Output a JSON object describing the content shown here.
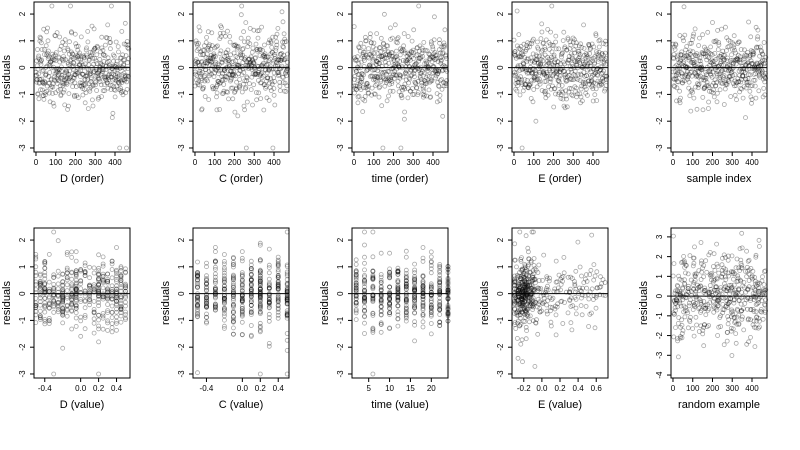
{
  "chart_data": [
    {
      "type": "scatter",
      "xlabel": "D (order)",
      "ylabel": "residuals",
      "xlim": [
        -10,
        476
      ],
      "ylim": [
        -3.15,
        2.45
      ],
      "xticks": [
        0,
        100,
        200,
        300,
        400
      ],
      "yticks": [
        -3,
        -2,
        -1,
        0,
        1,
        2
      ],
      "ytick_labels": [
        "-3",
        "-2",
        "-1",
        "0",
        "1",
        "2"
      ],
      "hline": 0,
      "points": {
        "n": 480,
        "x_min": 0,
        "x_max": 470,
        "y_range": [
          -3,
          2.3
        ],
        "seed": 11,
        "kind": "order"
      }
    },
    {
      "type": "scatter",
      "xlabel": "C (order)",
      "ylabel": "residuals",
      "xlim": [
        -10,
        476
      ],
      "ylim": [
        -3.15,
        2.45
      ],
      "xticks": [
        0,
        100,
        200,
        300,
        400
      ],
      "yticks": [
        -3,
        -2,
        -1,
        0,
        1,
        2
      ],
      "ytick_labels": [
        "-3",
        "-2",
        "-1",
        "0",
        "1",
        "2"
      ],
      "hline": 0,
      "points": {
        "n": 480,
        "x_min": 0,
        "x_max": 470,
        "y_range": [
          -3,
          2.3
        ],
        "seed": 23,
        "kind": "order"
      }
    },
    {
      "type": "scatter",
      "xlabel": "time (order)",
      "ylabel": "residuals",
      "xlim": [
        -10,
        476
      ],
      "ylim": [
        -3.15,
        2.45
      ],
      "xticks": [
        0,
        100,
        200,
        300,
        400
      ],
      "yticks": [
        -3,
        -2,
        -1,
        0,
        1,
        2
      ],
      "ytick_labels": [
        "-3",
        "-2",
        "-1",
        "0",
        "1",
        "2"
      ],
      "hline": 0,
      "points": {
        "n": 480,
        "x_min": 0,
        "x_max": 470,
        "y_range": [
          -3,
          2.3
        ],
        "seed": 37,
        "kind": "order"
      }
    },
    {
      "type": "scatter",
      "xlabel": "E (order)",
      "ylabel": "residuals",
      "xlim": [
        -10,
        476
      ],
      "ylim": [
        -3.15,
        2.45
      ],
      "xticks": [
        0,
        100,
        200,
        300,
        400
      ],
      "yticks": [
        -3,
        -2,
        -1,
        0,
        1,
        2
      ],
      "ytick_labels": [
        "-3",
        "-2",
        "-1",
        "0",
        "1",
        "2"
      ],
      "hline": 0,
      "points": {
        "n": 480,
        "x_min": 0,
        "x_max": 470,
        "y_range": [
          -3,
          2.3
        ],
        "seed": 41,
        "kind": "order"
      }
    },
    {
      "type": "scatter",
      "xlabel": "sample index",
      "ylabel": "residuals",
      "xlim": [
        -10,
        476
      ],
      "ylim": [
        -3.15,
        2.45
      ],
      "xticks": [
        0,
        100,
        200,
        300,
        400
      ],
      "yticks": [
        -3,
        -2,
        -1,
        0,
        1,
        2
      ],
      "ytick_labels": [
        "-3",
        "-2",
        "-1",
        "0",
        "1",
        "2"
      ],
      "hline": 0,
      "points": {
        "n": 480,
        "x_min": 0,
        "x_max": 470,
        "y_range": [
          -3,
          2.3
        ],
        "seed": 53,
        "kind": "order"
      }
    },
    {
      "type": "scatter",
      "xlabel": "D (value)",
      "ylabel": "residuals",
      "xlim": [
        -0.52,
        0.55
      ],
      "ylim": [
        -3.15,
        2.45
      ],
      "xticks": [
        -0.4,
        0,
        0.2,
        0.4
      ],
      "xtick_labels": [
        "-0.4",
        "0.0",
        "0.2",
        "0.4"
      ],
      "yticks": [
        -3,
        -2,
        -1,
        0,
        1,
        2
      ],
      "ytick_labels": [
        "-3",
        "-2",
        "-1",
        "0",
        "1",
        "2"
      ],
      "hline": 0,
      "points": {
        "n": 480,
        "seed": 61,
        "kind": "discrete",
        "levels": [
          -0.5,
          -0.45,
          -0.4,
          -0.35,
          -0.3,
          -0.25,
          -0.2,
          -0.15,
          -0.1,
          -0.05,
          0,
          0.05,
          0.1,
          0.15,
          0.2,
          0.25,
          0.3,
          0.35,
          0.4,
          0.45,
          0.5
        ],
        "y_range": [
          -3,
          2.3
        ]
      }
    },
    {
      "type": "scatter",
      "xlabel": "C (value)",
      "ylabel": "residuals",
      "xlim": [
        -0.55,
        0.52
      ],
      "ylim": [
        -3.15,
        2.45
      ],
      "xticks": [
        -0.4,
        0,
        0.2,
        0.4
      ],
      "xtick_labels": [
        "-0.4",
        "0.0",
        "0.2",
        "0.4"
      ],
      "yticks": [
        -3,
        -2,
        -1,
        0,
        1,
        2
      ],
      "ytick_labels": [
        "-3",
        "-2",
        "-1",
        "0",
        "1",
        "2"
      ],
      "hline": 0,
      "points": {
        "n": 480,
        "seed": 71,
        "kind": "discrete",
        "levels": [
          -0.5,
          -0.4,
          -0.3,
          -0.2,
          -0.1,
          0,
          0.1,
          0.2,
          0.3,
          0.4,
          0.5
        ],
        "y_range": [
          -3,
          2.3
        ]
      }
    },
    {
      "type": "scatter",
      "xlabel": "time (value)",
      "ylabel": "residuals",
      "xlim": [
        1,
        24
      ],
      "ylim": [
        -3.15,
        2.45
      ],
      "xticks": [
        5,
        10,
        15,
        20
      ],
      "yticks": [
        -3,
        -2,
        -1,
        0,
        1,
        2
      ],
      "ytick_labels": [
        "-3",
        "-2",
        "-1",
        "0",
        "1",
        "2"
      ],
      "hline": 0,
      "points": {
        "n": 480,
        "seed": 83,
        "kind": "discrete",
        "levels": [
          2,
          4,
          6,
          8,
          10,
          12,
          14,
          16,
          18,
          20,
          22,
          24
        ],
        "y_range": [
          -3,
          2.3
        ]
      }
    },
    {
      "type": "scatter",
      "xlabel": "E (value)",
      "ylabel": "residuals",
      "xlim": [
        -0.33,
        0.73
      ],
      "ylim": [
        -3.15,
        2.45
      ],
      "xticks": [
        -0.2,
        0,
        0.2,
        0.4,
        0.6
      ],
      "xtick_labels": [
        "-0.2",
        "0.0",
        "0.2",
        "0.4",
        "0.6"
      ],
      "yticks": [
        -3,
        -2,
        -1,
        0,
        1,
        2
      ],
      "ytick_labels": [
        "-3",
        "-2",
        "-1",
        "0",
        "1",
        "2"
      ],
      "hline": 0,
      "points": {
        "n": 480,
        "seed": 97,
        "kind": "skew",
        "y_range": [
          -3,
          2.3
        ]
      }
    },
    {
      "type": "scatter",
      "xlabel": "random example",
      "ylabel": "residuals",
      "xlim": [
        -10,
        476
      ],
      "ylim": [
        -4.15,
        3.45
      ],
      "xticks": [
        0,
        100,
        200,
        300,
        400
      ],
      "yticks": [
        -4,
        -3,
        -2,
        -1,
        0,
        1,
        2,
        3
      ],
      "ytick_labels": [
        "-4",
        "-3",
        "-2",
        "-1",
        "0",
        "1",
        "2",
        "3"
      ],
      "hline": 0,
      "points": {
        "n": 480,
        "x_min": 0,
        "x_max": 470,
        "y_range": [
          -3.8,
          3.2
        ],
        "seed": 103,
        "kind": "random"
      }
    }
  ]
}
